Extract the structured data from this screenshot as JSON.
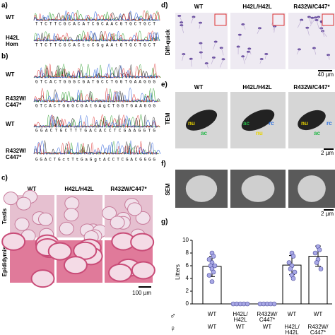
{
  "panels": {
    "a": {
      "label": "a)",
      "rows": [
        {
          "name": [
            "WT"
          ],
          "sequence": "TTCTTCGCACATCGCAACGTGCTGCT"
        },
        {
          "name": [
            "H42L",
            "Hom"
          ],
          "sequence": "TTCTTCGCACtcCGgAAtGTGCTGCT"
        }
      ]
    },
    "b": {
      "label": "b)",
      "rows": [
        {
          "name": [
            "WT"
          ],
          "sequence": "GTCACTGGGCGATGCCTGGTGAAGGG"
        },
        {
          "name": [
            "R432W/",
            "C447*"
          ],
          "sequence": "GTCACTGGGCGAtGAgCTGGTGAAGGG"
        },
        {
          "name": [
            "WT"
          ],
          "sequence": "GGACTGCTTTGACACCTCGAAGGTG"
        },
        {
          "name": [
            "R432W/",
            "C447*"
          ],
          "sequence": "GGACTGctTtGaGgtACCTCGACGGGG"
        }
      ]
    },
    "c": {
      "label": "c)",
      "columns": [
        "WT",
        "H42L/H42L",
        "R432W/C447*"
      ],
      "rows": [
        "Testis",
        "Epididymis"
      ],
      "scale": "100 µm"
    },
    "d": {
      "label": "d)",
      "columns": [
        "WT",
        "H42L/H42L",
        "R432W/C447*"
      ],
      "method": "Diff-quick",
      "scale": "40 µm"
    },
    "e": {
      "label": "e)",
      "columns": [
        "WT",
        "H42L/H42L",
        "R432W/C447*"
      ],
      "method": "TEM",
      "annotations": [
        [
          "nu",
          "ac"
        ],
        [
          "ac",
          "nu",
          "rc"
        ],
        [
          "nu",
          "ac",
          "rc"
        ]
      ],
      "scale": "2 µm"
    },
    "f": {
      "label": "f)",
      "columns": [
        "WT",
        "H42L/H42L",
        "R432W/C447*"
      ],
      "method": "SEM",
      "scale": "2 µm"
    }
  },
  "chart_data": {
    "type": "bar",
    "panel_label": "g)",
    "ylabel": "Litters",
    "male_symbol": "♂",
    "female_symbol": "♀",
    "categories": [
      [
        "WT"
      ],
      [
        "H42L/",
        "H42L"
      ],
      [
        "R432W/",
        "C447*"
      ],
      [
        "WT"
      ],
      [
        "WT"
      ]
    ],
    "female_categories": [
      [
        "WT"
      ],
      [
        "WT"
      ],
      [
        "WT"
      ],
      [
        "H42L/",
        "H42L"
      ],
      [
        "R432W/",
        "C447*"
      ]
    ],
    "values": [
      5.9,
      0,
      0,
      6.1,
      7.5
    ],
    "errors": [
      1.6,
      0,
      0,
      1.5,
      1.6
    ],
    "points": [
      [
        8,
        7.5,
        7,
        6.5,
        6,
        6,
        5.5,
        5,
        4.5,
        3.5
      ],
      [
        0,
        0,
        0,
        0,
        0
      ],
      [
        0,
        0,
        0,
        0,
        0
      ],
      [
        8,
        7.5,
        6.5,
        6,
        5.5,
        5,
        4.5,
        4
      ],
      [
        9,
        8.5,
        8,
        7,
        6.5,
        5.5
      ]
    ],
    "point_color": "#a9a9e6",
    "bar_color": "#ffffff",
    "ylim": [
      0,
      10
    ],
    "yticks": [
      0,
      2,
      4,
      6,
      8,
      10
    ]
  }
}
